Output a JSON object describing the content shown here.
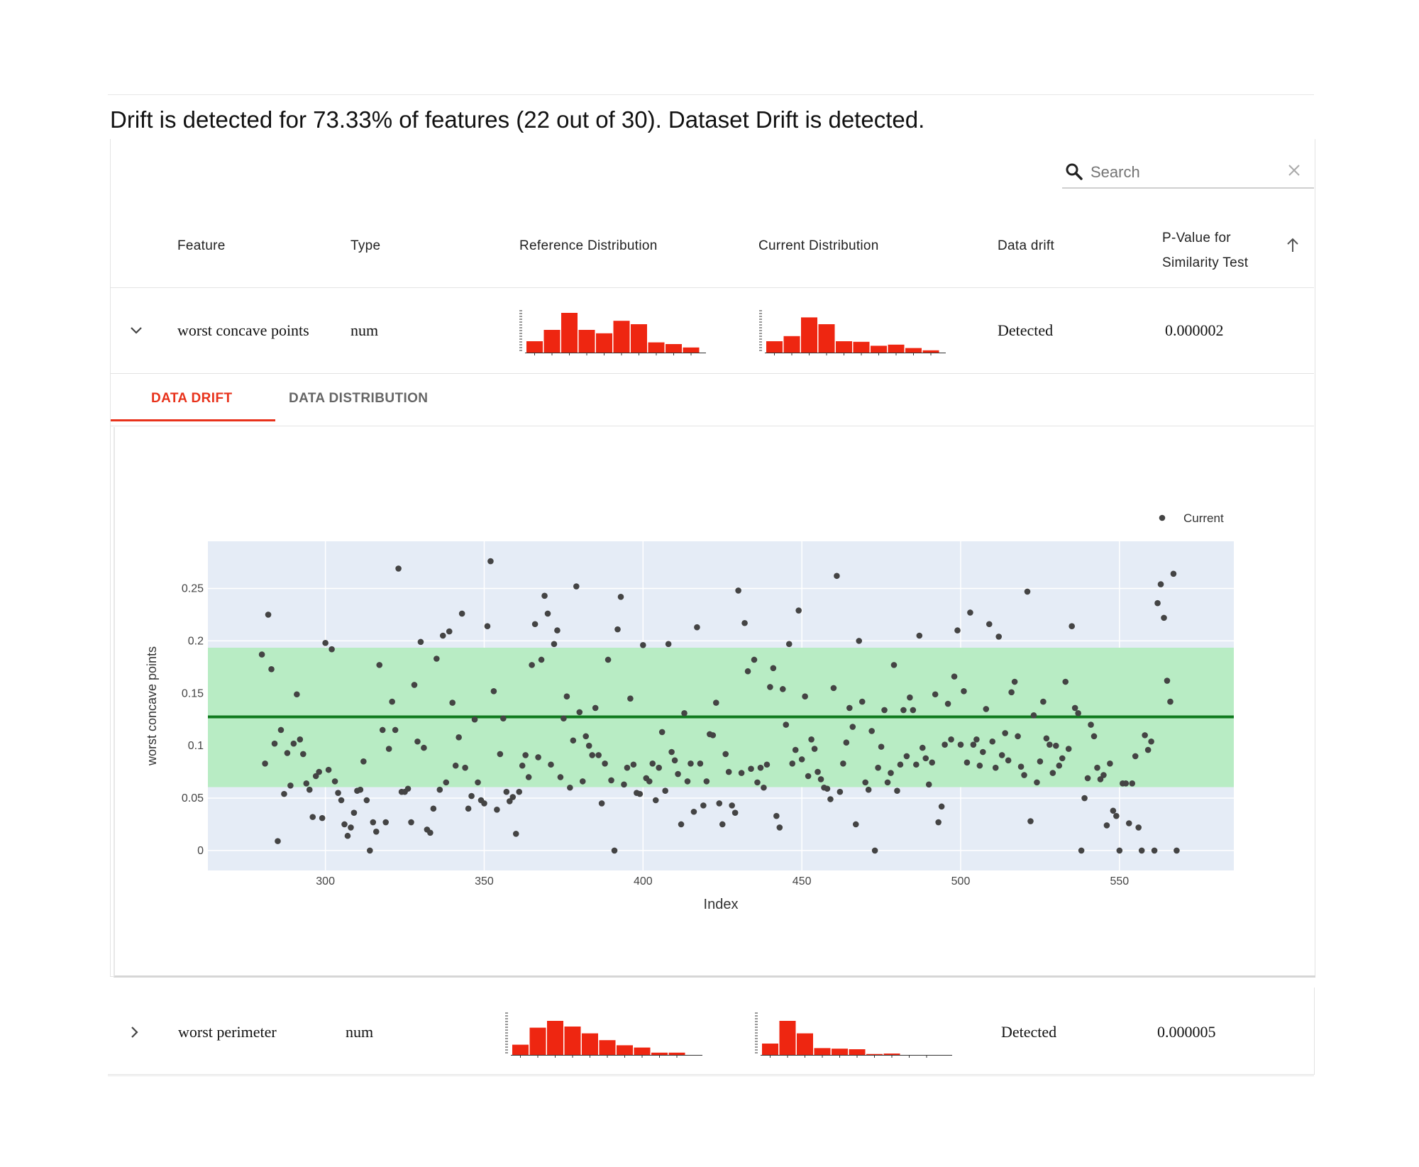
{
  "summary": "Drift is detected for 73.33% of features (22 out of 30). Dataset Drift is detected.",
  "search": {
    "placeholder": "Search"
  },
  "icons": {
    "search": "search-icon",
    "clear": "close-icon",
    "sort": "arrow-up-icon",
    "expanded": "chevron-down-icon",
    "collapsed": "chevron-right-icon"
  },
  "colors": {
    "accent": "#e8321b",
    "histogram": "#ee2611",
    "plot_bg": "#e5ecf6",
    "band": "#b8ecc4",
    "reference_line": "#0f7a1e",
    "point": "#444444"
  },
  "table": {
    "headers": {
      "feature": "Feature",
      "type": "Type",
      "reference": "Reference Distribution",
      "current": "Current Distribution",
      "drift": "Data drift",
      "pvalue_line1": "P-Value for",
      "pvalue_line2": "Similarity Test"
    },
    "rows": [
      {
        "feature": "worst concave points",
        "type": "num",
        "drift": "Detected",
        "pvalue": "0.000002",
        "ref_hist": [
          1,
          2,
          3.5,
          2,
          1.7,
          2.8,
          2.5,
          0.9,
          0.75,
          0.45
        ],
        "cur_hist": [
          1,
          1.45,
          3.1,
          2.5,
          1,
          0.95,
          0.6,
          0.7,
          0.4,
          0.2
        ]
      },
      {
        "feature": "worst perimeter",
        "type": "num",
        "drift": "Detected",
        "pvalue": "0.000005",
        "ref_hist": [
          0.9,
          2.4,
          3,
          2.5,
          1.9,
          1.3,
          0.85,
          0.65,
          0.2,
          0.2
        ],
        "cur_hist": [
          1,
          3,
          1.9,
          0.6,
          0.55,
          0.5,
          0.08,
          0.12,
          0,
          0
        ]
      }
    ]
  },
  "tabs": {
    "drift": "DATA DRIFT",
    "distribution": "DATA DISTRIBUTION"
  },
  "chart_data": {
    "type": "scatter",
    "title": "",
    "xlabel": "Index",
    "ylabel": "worst concave points",
    "xlim": [
      263,
      586
    ],
    "ylim": [
      -0.019,
      0.295
    ],
    "xticks": [
      300,
      350,
      400,
      450,
      500,
      550
    ],
    "yticks": [
      0,
      0.05,
      0.1,
      0.15,
      0.2,
      0.25
    ],
    "ytick_labels": [
      "0",
      "0.05",
      "0.1",
      "0.15",
      "0.2",
      "0.25"
    ],
    "reference_mean": 0.1275,
    "band": [
      0.0605,
      0.1935
    ],
    "legend": "Current",
    "legend_position": "top-right",
    "series": [
      {
        "name": "Current",
        "points": [
          [
            280,
            0.187
          ],
          [
            281,
            0.083
          ],
          [
            282,
            0.225
          ],
          [
            283,
            0.173
          ],
          [
            284,
            0.102
          ],
          [
            285,
            0.009
          ],
          [
            286,
            0.115
          ],
          [
            287,
            0.054
          ],
          [
            288,
            0.093
          ],
          [
            289,
            0.062
          ],
          [
            290,
            0.102
          ],
          [
            291,
            0.149
          ],
          [
            292,
            0.106
          ],
          [
            293,
            0.092
          ],
          [
            294,
            0.064
          ],
          [
            295,
            0.058
          ],
          [
            296,
            0.032
          ],
          [
            297,
            0.071
          ],
          [
            298,
            0.075
          ],
          [
            299,
            0.031
          ],
          [
            300,
            0.198
          ],
          [
            301,
            0.077
          ],
          [
            302,
            0.192
          ],
          [
            303,
            0.066
          ],
          [
            304,
            0.055
          ],
          [
            305,
            0.048
          ],
          [
            306,
            0.025
          ],
          [
            307,
            0.014
          ],
          [
            308,
            0.022
          ],
          [
            309,
            0.036
          ],
          [
            310,
            0.057
          ],
          [
            311,
            0.058
          ],
          [
            312,
            0.085
          ],
          [
            313,
            0.048
          ],
          [
            314,
            0.0
          ],
          [
            315,
            0.027
          ],
          [
            316,
            0.018
          ],
          [
            317,
            0.177
          ],
          [
            318,
            0.115
          ],
          [
            319,
            0.027
          ],
          [
            320,
            0.097
          ],
          [
            321,
            0.142
          ],
          [
            322,
            0.115
          ],
          [
            323,
            0.269
          ],
          [
            324,
            0.056
          ],
          [
            325,
            0.056
          ],
          [
            326,
            0.059
          ],
          [
            327,
            0.027
          ],
          [
            328,
            0.158
          ],
          [
            329,
            0.104
          ],
          [
            330,
            0.199
          ],
          [
            331,
            0.098
          ],
          [
            332,
            0.02
          ],
          [
            333,
            0.017
          ],
          [
            334,
            0.04
          ],
          [
            335,
            0.183
          ],
          [
            336,
            0.058
          ],
          [
            337,
            0.205
          ],
          [
            338,
            0.065
          ],
          [
            339,
            0.209
          ],
          [
            340,
            0.141
          ],
          [
            341,
            0.081
          ],
          [
            342,
            0.108
          ],
          [
            343,
            0.226
          ],
          [
            344,
            0.079
          ],
          [
            345,
            0.04
          ],
          [
            346,
            0.052
          ],
          [
            347,
            0.125
          ],
          [
            348,
            0.065
          ],
          [
            349,
            0.048
          ],
          [
            350,
            0.045
          ],
          [
            351,
            0.214
          ],
          [
            352,
            0.276
          ],
          [
            353,
            0.152
          ],
          [
            354,
            0.039
          ],
          [
            355,
            0.092
          ],
          [
            356,
            0.126
          ],
          [
            357,
            0.056
          ],
          [
            358,
            0.047
          ],
          [
            359,
            0.051
          ],
          [
            360,
            0.016
          ],
          [
            361,
            0.056
          ],
          [
            362,
            0.081
          ],
          [
            363,
            0.091
          ],
          [
            364,
            0.07
          ],
          [
            365,
            0.177
          ],
          [
            366,
            0.216
          ],
          [
            367,
            0.089
          ],
          [
            368,
            0.182
          ],
          [
            369,
            0.243
          ],
          [
            370,
            0.226
          ],
          [
            371,
            0.082
          ],
          [
            372,
            0.197
          ],
          [
            373,
            0.21
          ],
          [
            374,
            0.07
          ],
          [
            375,
            0.126
          ],
          [
            376,
            0.147
          ],
          [
            377,
            0.06
          ],
          [
            378,
            0.105
          ],
          [
            379,
            0.252
          ],
          [
            380,
            0.132
          ],
          [
            381,
            0.066
          ],
          [
            382,
            0.109
          ],
          [
            383,
            0.1
          ],
          [
            384,
            0.091
          ],
          [
            385,
            0.136
          ],
          [
            386,
            0.091
          ],
          [
            387,
            0.045
          ],
          [
            388,
            0.083
          ],
          [
            389,
            0.182
          ],
          [
            390,
            0.067
          ],
          [
            391,
            0.0
          ],
          [
            392,
            0.211
          ],
          [
            393,
            0.242
          ],
          [
            394,
            0.063
          ],
          [
            395,
            0.079
          ],
          [
            396,
            0.145
          ],
          [
            397,
            0.082
          ],
          [
            398,
            0.055
          ],
          [
            399,
            0.054
          ],
          [
            400,
            0.196
          ],
          [
            401,
            0.069
          ],
          [
            402,
            0.066
          ],
          [
            403,
            0.083
          ],
          [
            404,
            0.048
          ],
          [
            405,
            0.079
          ],
          [
            406,
            0.113
          ],
          [
            407,
            0.057
          ],
          [
            408,
            0.197
          ],
          [
            409,
            0.094
          ],
          [
            410,
            0.086
          ],
          [
            411,
            0.073
          ],
          [
            412,
            0.025
          ],
          [
            413,
            0.131
          ],
          [
            414,
            0.066
          ],
          [
            415,
            0.083
          ],
          [
            416,
            0.037
          ],
          [
            417,
            0.213
          ],
          [
            418,
            0.083
          ],
          [
            419,
            0.043
          ],
          [
            420,
            0.066
          ],
          [
            421,
            0.111
          ],
          [
            422,
            0.11
          ],
          [
            423,
            0.141
          ],
          [
            424,
            0.045
          ],
          [
            425,
            0.025
          ],
          [
            426,
            0.092
          ],
          [
            427,
            0.075
          ],
          [
            428,
            0.043
          ],
          [
            429,
            0.036
          ],
          [
            430,
            0.248
          ],
          [
            431,
            0.074
          ],
          [
            432,
            0.217
          ],
          [
            433,
            0.171
          ],
          [
            434,
            0.078
          ],
          [
            435,
            0.182
          ],
          [
            436,
            0.065
          ],
          [
            437,
            0.079
          ],
          [
            438,
            0.06
          ],
          [
            439,
            0.082
          ],
          [
            440,
            0.156
          ],
          [
            441,
            0.174
          ],
          [
            442,
            0.033
          ],
          [
            443,
            0.022
          ],
          [
            444,
            0.154
          ],
          [
            445,
            0.12
          ],
          [
            446,
            0.197
          ],
          [
            447,
            0.083
          ],
          [
            448,
            0.096
          ],
          [
            449,
            0.229
          ],
          [
            450,
            0.087
          ],
          [
            451,
            0.147
          ],
          [
            452,
            0.071
          ],
          [
            453,
            0.106
          ],
          [
            454,
            0.097
          ],
          [
            455,
            0.075
          ],
          [
            456,
            0.068
          ],
          [
            457,
            0.06
          ],
          [
            458,
            0.059
          ],
          [
            459,
            0.049
          ],
          [
            460,
            0.155
          ],
          [
            461,
            0.262
          ],
          [
            462,
            0.056
          ],
          [
            463,
            0.083
          ],
          [
            464,
            0.103
          ],
          [
            465,
            0.136
          ],
          [
            466,
            0.118
          ],
          [
            467,
            0.025
          ],
          [
            468,
            0.2
          ],
          [
            469,
            0.142
          ],
          [
            470,
            0.065
          ],
          [
            471,
            0.058
          ],
          [
            472,
            0.114
          ],
          [
            473,
            0.0
          ],
          [
            474,
            0.079
          ],
          [
            475,
            0.099
          ],
          [
            476,
            0.134
          ],
          [
            477,
            0.065
          ],
          [
            478,
            0.074
          ],
          [
            479,
            0.177
          ],
          [
            480,
            0.057
          ],
          [
            481,
            0.082
          ],
          [
            482,
            0.134
          ],
          [
            483,
            0.09
          ],
          [
            484,
            0.146
          ],
          [
            485,
            0.134
          ],
          [
            486,
            0.082
          ],
          [
            487,
            0.205
          ],
          [
            488,
            0.098
          ],
          [
            489,
            0.088
          ],
          [
            490,
            0.063
          ],
          [
            491,
            0.084
          ],
          [
            492,
            0.149
          ],
          [
            493,
            0.027
          ],
          [
            494,
            0.042
          ],
          [
            495,
            0.101
          ],
          [
            496,
            0.14
          ],
          [
            497,
            0.106
          ],
          [
            498,
            0.166
          ],
          [
            499,
            0.21
          ],
          [
            500,
            0.101
          ],
          [
            501,
            0.152
          ],
          [
            502,
            0.084
          ],
          [
            503,
            0.227
          ],
          [
            504,
            0.101
          ],
          [
            505,
            0.106
          ],
          [
            506,
            0.081
          ],
          [
            507,
            0.094
          ],
          [
            508,
            0.135
          ],
          [
            509,
            0.216
          ],
          [
            510,
            0.104
          ],
          [
            511,
            0.079
          ],
          [
            512,
            0.204
          ],
          [
            513,
            0.091
          ],
          [
            514,
            0.112
          ],
          [
            515,
            0.086
          ],
          [
            516,
            0.151
          ],
          [
            517,
            0.161
          ],
          [
            518,
            0.109
          ],
          [
            519,
            0.08
          ],
          [
            520,
            0.072
          ],
          [
            521,
            0.247
          ],
          [
            522,
            0.028
          ],
          [
            523,
            0.129
          ],
          [
            524,
            0.065
          ],
          [
            525,
            0.085
          ],
          [
            526,
            0.142
          ],
          [
            527,
            0.107
          ],
          [
            528,
            0.101
          ],
          [
            529,
            0.074
          ],
          [
            530,
            0.1
          ],
          [
            531,
            0.081
          ],
          [
            532,
            0.088
          ],
          [
            533,
            0.161
          ],
          [
            534,
            0.097
          ],
          [
            535,
            0.214
          ],
          [
            536,
            0.136
          ],
          [
            537,
            0.131
          ],
          [
            538,
            0.0
          ],
          [
            539,
            0.05
          ],
          [
            540,
            0.069
          ],
          [
            541,
            0.12
          ],
          [
            542,
            0.109
          ],
          [
            543,
            0.079
          ],
          [
            544,
            0.068
          ],
          [
            545,
            0.072
          ],
          [
            546,
            0.024
          ],
          [
            547,
            0.083
          ],
          [
            548,
            0.038
          ],
          [
            549,
            0.033
          ],
          [
            550,
            0.0
          ],
          [
            551,
            0.064
          ],
          [
            552,
            0.064
          ],
          [
            553,
            0.026
          ],
          [
            554,
            0.064
          ],
          [
            555,
            0.09
          ],
          [
            556,
            0.022
          ],
          [
            557,
            0.0
          ],
          [
            558,
            0.11
          ],
          [
            559,
            0.096
          ],
          [
            560,
            0.104
          ],
          [
            561,
            0.0
          ],
          [
            562,
            0.236
          ],
          [
            563,
            0.254
          ],
          [
            564,
            0.222
          ],
          [
            565,
            0.162
          ],
          [
            566,
            0.142
          ],
          [
            567,
            0.264
          ],
          [
            568,
            0.0
          ]
        ]
      }
    ]
  }
}
